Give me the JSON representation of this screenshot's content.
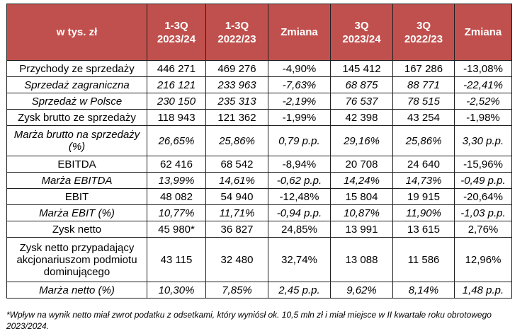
{
  "table": {
    "headers": [
      {
        "lines": [
          "w tys. zł"
        ]
      },
      {
        "lines": [
          "1-3Q",
          "2023/24"
        ]
      },
      {
        "lines": [
          "1-3Q",
          "2022/23"
        ]
      },
      {
        "lines": [
          "Zmiana"
        ]
      },
      {
        "lines": [
          "3Q",
          "2023/24"
        ]
      },
      {
        "lines": [
          "3Q",
          "2022/23"
        ]
      },
      {
        "lines": [
          "Zmiana"
        ]
      }
    ],
    "rows": [
      {
        "cells": [
          "Przychody ze sprzedaży",
          "446 271",
          "469 276",
          "-4,90%",
          "145 412",
          "167 286",
          "-13,08%"
        ]
      },
      {
        "cells": [
          "Sprzedaż zagraniczna",
          "216 121",
          "233 963",
          "-7,63%",
          "68 875",
          "88 771",
          "-22,41%"
        ]
      },
      {
        "cells": [
          "Sprzedaż w Polsce",
          "230 150",
          "235 313",
          "-2,19%",
          "76 537",
          "78 515",
          "-2,52%"
        ]
      },
      {
        "cells": [
          "Zysk brutto ze sprzedaży",
          "118 943",
          "121 362",
          "-1,99%",
          "42 398",
          "43 254",
          "-1,98%"
        ]
      },
      {
        "cells": [
          "Marża brutto na sprzedaży (%)",
          "26,65%",
          "25,86%",
          "0,79 p.p.",
          "29,16%",
          "25,86%",
          "3,30 p.p."
        ]
      },
      {
        "cells": [
          "EBITDA",
          "62 416",
          "68 542",
          "-8,94%",
          "20 708",
          "24 640",
          "-15,96%"
        ]
      },
      {
        "cells": [
          "Marża EBITDA",
          "13,99%",
          "14,61%",
          "-0,62 p.p.",
          "14,24%",
          "14,73%",
          "-0,49 p.p."
        ]
      },
      {
        "cells": [
          "EBIT",
          "48 082",
          "54 940",
          "-12,48%",
          "15 804",
          "19 915",
          "-20,64%"
        ]
      },
      {
        "cells": [
          "Marża EBIT (%)",
          "10,77%",
          "11,71%",
          "-0,94 p.p.",
          "10,87%",
          "11,90%",
          "-1,03 p.p."
        ]
      },
      {
        "cells": [
          "Zysk netto",
          "45 980*",
          "36 827",
          "24,85%",
          "13 991",
          "13 615",
          "2,76%"
        ]
      },
      {
        "cells": [
          "Zysk netto przypadający akcjonariuszom podmiotu dominującego",
          "43 115",
          "32 480",
          "32,74%",
          "13 088",
          "11 586",
          "12,96%"
        ]
      },
      {
        "cells": [
          "Marża netto  (%)",
          "10,30%",
          "7,85%",
          "2,45 p.p.",
          "9,62%",
          "8,14%",
          "1,48 p.p."
        ]
      }
    ]
  },
  "footnote": "*Wpływ na wynik netto miał zwrot podatku z odsetkami, który wyniósł ok. 10,5 mln zł i miał miejsce w II kwartale roku obrotowego 2023/2024.",
  "colors": {
    "header_bg": "#c0504d",
    "header_text": "#ffffff",
    "border": "#1f1f1f"
  }
}
